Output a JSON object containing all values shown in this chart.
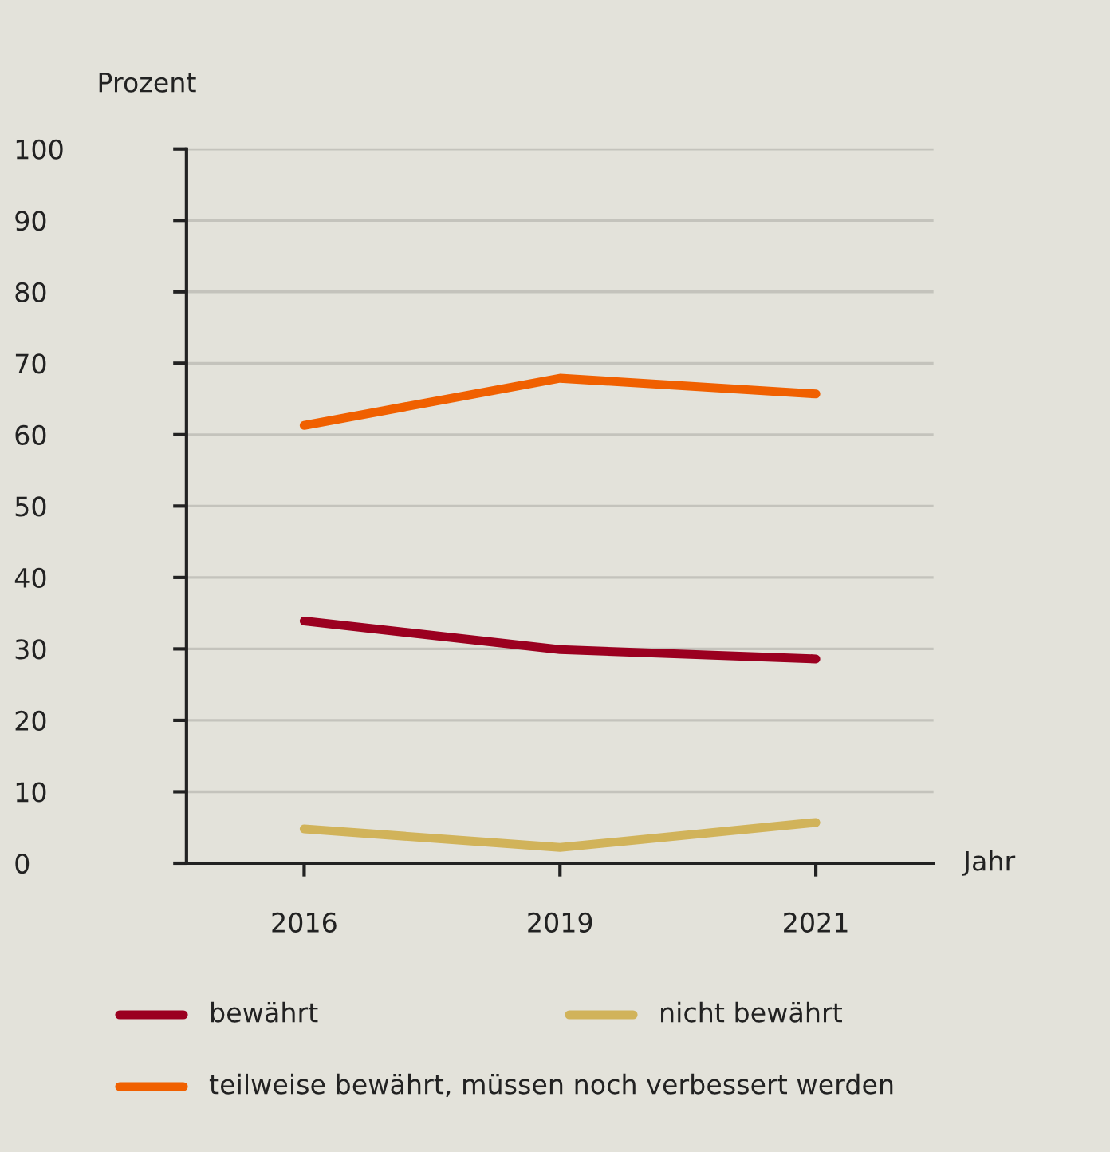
{
  "chart_data": {
    "type": "line",
    "ylabel": "Prozent",
    "xlabel": "Jahr",
    "categories": [
      "2016",
      "2019",
      "2021"
    ],
    "series": [
      {
        "name": "bewährt",
        "color": "#9b0020",
        "values": [
          33.9,
          29.9,
          28.6
        ]
      },
      {
        "name": "nicht bewährt",
        "color": "#d1b35a",
        "values": [
          4.8,
          2.2,
          5.7
        ]
      },
      {
        "name": "teilweise bewährt, müssen noch verbessert werden",
        "color": "#f06000",
        "values": [
          61.3,
          67.9,
          65.7
        ]
      }
    ],
    "ylim": [
      0,
      100
    ],
    "yticks": [
      0,
      10,
      20,
      30,
      40,
      50,
      60,
      70,
      80,
      90,
      100
    ],
    "grid": "y",
    "legend": "bottom",
    "marker": "none",
    "line_style": "solid"
  }
}
